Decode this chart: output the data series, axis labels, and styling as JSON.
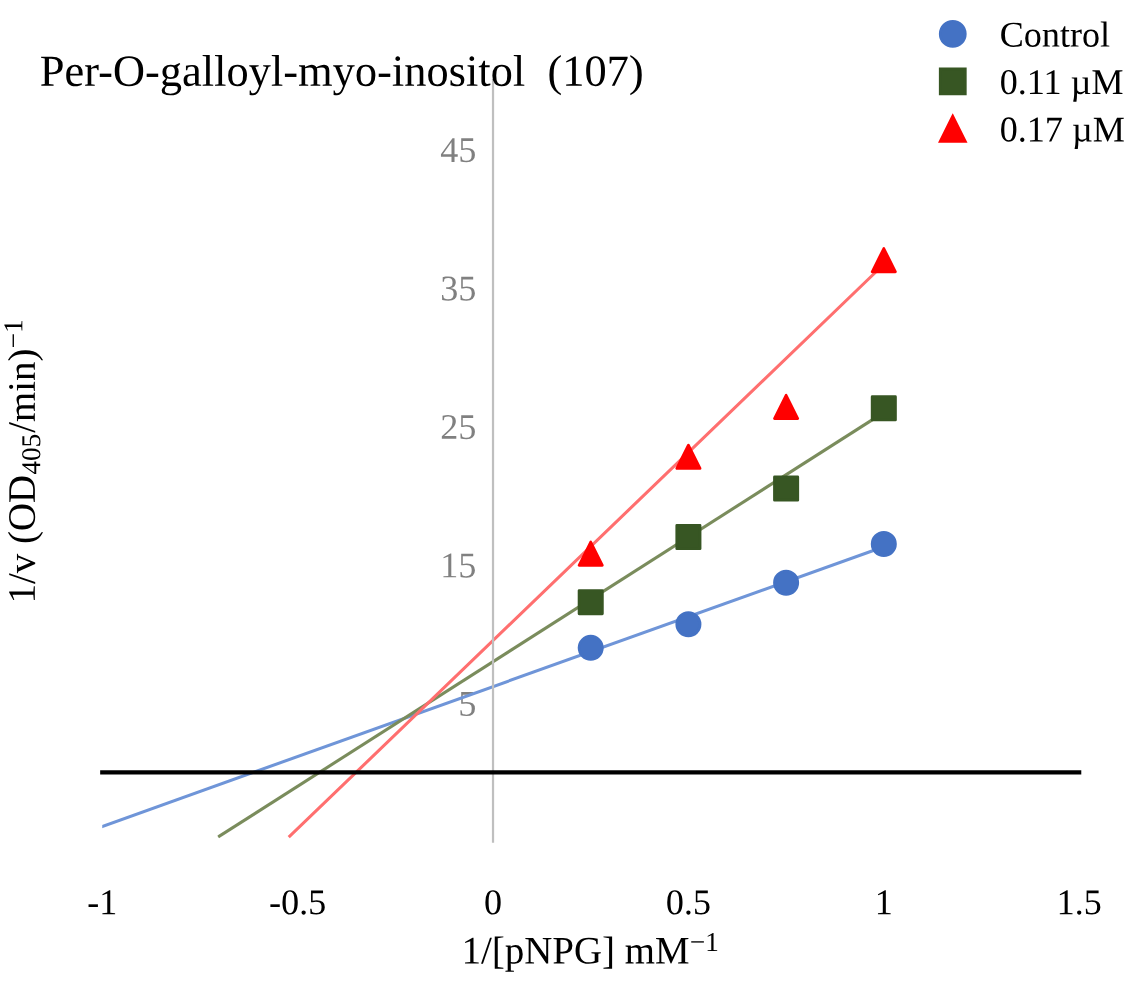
{
  "chart_data": {
    "type": "scatter",
    "title": "Per-O-galloyl-myo-inositol  (107)",
    "xlabel": "1/[pNPG] mM$^{−1}$",
    "ylabel": "1/v (OD$_{405}$/min)$^{−1}$",
    "x": [
      0.25,
      0.5,
      0.75,
      1.0
    ],
    "series": [
      {
        "name": "Control",
        "color": "#4472c4",
        "marker": "circle",
        "values": [
          9.0,
          10.7,
          13.7,
          16.5
        ]
      },
      {
        "name": "0.11 µM",
        "color": "#375623",
        "marker": "square",
        "values": [
          12.3,
          17.0,
          20.5,
          26.3
        ]
      },
      {
        "name": "0.17 µM",
        "color": "#ff0000",
        "marker": "triangle",
        "values": [
          15.8,
          22.8,
          26.4,
          37.0
        ]
      },
      {
        "type": "line",
        "color": "#6f95d8",
        "x": [
          -1,
          1
        ],
        "values": [
          -3.9,
          16.3
        ]
      },
      {
        "type": "line",
        "color": "#7a8c5c",
        "x": [
          -0.7,
          1
        ],
        "values": [
          -4.6,
          26.0
        ]
      },
      {
        "type": "line",
        "color": "#ff6f6f",
        "x": [
          -0.52,
          1
        ],
        "values": [
          -4.6,
          36.7
        ]
      }
    ],
    "xlim": [
      -1,
      1.5
    ],
    "ylim": [
      -5,
      50
    ],
    "xticks": [
      -1,
      -0.5,
      0,
      0.5,
      1,
      1.5
    ],
    "yticks": [
      5,
      15,
      25,
      35,
      45
    ],
    "grid": false,
    "legend": "top right"
  }
}
